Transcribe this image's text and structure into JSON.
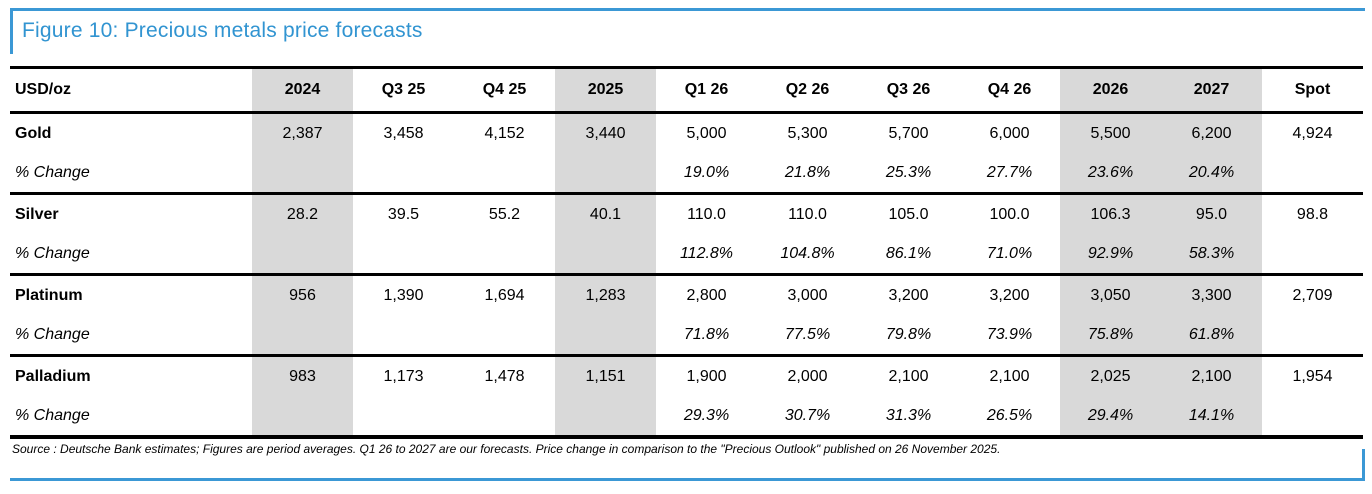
{
  "figure_title": "Figure 10: Precious metals price forecasts",
  "source_note": "Source : Deutsche Bank estimates; Figures are period averages. Q1 26 to 2027 are our forecasts. Price change in comparison to the \"Precious Outlook\" published on 26 November 2025.",
  "colors": {
    "accent_blue": "#3b98d5",
    "shade_gray": "#d9d9d9"
  },
  "chart_data": {
    "type": "table",
    "title": "Figure 10: Precious metals price forecasts",
    "unit_label": "USD/oz",
    "shaded_columns": [
      "2024",
      "2025",
      "2026",
      "2027"
    ],
    "columns": [
      "USD/oz",
      "2024",
      "Q3 25",
      "Q4 25",
      "2025",
      "Q1 26",
      "Q2 26",
      "Q3 26",
      "Q4 26",
      "2026",
      "2027",
      "Spot"
    ]
  },
  "table": {
    "pct_label": "% Change",
    "columns": [
      "USD/oz",
      "2024",
      "Q3 25",
      "Q4 25",
      "2025",
      "Q1 26",
      "Q2 26",
      "Q3 26",
      "Q4 26",
      "2026",
      "2027",
      "Spot"
    ],
    "groups": [
      {
        "metal": "Gold",
        "prices": [
          "2,387",
          "3,458",
          "4,152",
          "3,440",
          "5,000",
          "5,300",
          "5,700",
          "6,000",
          "5,500",
          "6,200",
          "4,924"
        ],
        "pct": [
          "",
          "",
          "",
          "",
          "19.0%",
          "21.8%",
          "25.3%",
          "27.7%",
          "23.6%",
          "20.4%",
          ""
        ]
      },
      {
        "metal": "Silver",
        "prices": [
          "28.2",
          "39.5",
          "55.2",
          "40.1",
          "110.0",
          "110.0",
          "105.0",
          "100.0",
          "106.3",
          "95.0",
          "98.8"
        ],
        "pct": [
          "",
          "",
          "",
          "",
          "112.8%",
          "104.8%",
          "86.1%",
          "71.0%",
          "92.9%",
          "58.3%",
          ""
        ]
      },
      {
        "metal": "Platinum",
        "prices": [
          "956",
          "1,390",
          "1,694",
          "1,283",
          "2,800",
          "3,000",
          "3,200",
          "3,200",
          "3,050",
          "3,300",
          "2,709"
        ],
        "pct": [
          "",
          "",
          "",
          "",
          "71.8%",
          "77.5%",
          "79.8%",
          "73.9%",
          "75.8%",
          "61.8%",
          ""
        ]
      },
      {
        "metal": "Palladium",
        "prices": [
          "983",
          "1,173",
          "1,478",
          "1,151",
          "1,900",
          "2,000",
          "2,100",
          "2,100",
          "2,025",
          "2,100",
          "1,954"
        ],
        "pct": [
          "",
          "",
          "",
          "",
          "29.3%",
          "30.7%",
          "31.3%",
          "26.5%",
          "29.4%",
          "14.1%",
          ""
        ]
      }
    ]
  }
}
